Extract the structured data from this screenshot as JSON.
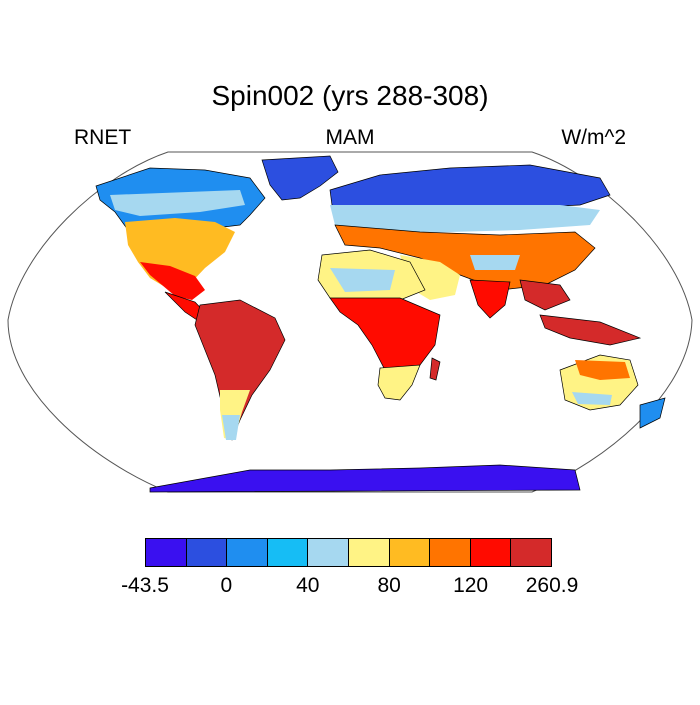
{
  "title": "Spin002 (yrs 288-308)",
  "left_label": "RNET",
  "center_label": "MAM",
  "right_label": "W/m^2",
  "colorbar": {
    "colors": [
      "#3a10f0",
      "#2c4fe0",
      "#1f8ef0",
      "#16bdf5",
      "#a6d8f0",
      "#fff385",
      "#ffbb22",
      "#ff7400",
      "#ff0b00",
      "#d42a2a"
    ],
    "tick_labels": [
      "-43.5",
      "0",
      "40",
      "80",
      "120",
      "260.9"
    ]
  },
  "map": {
    "projection": "robinson",
    "background": "#ffffff",
    "coastline_color": "#000000"
  }
}
